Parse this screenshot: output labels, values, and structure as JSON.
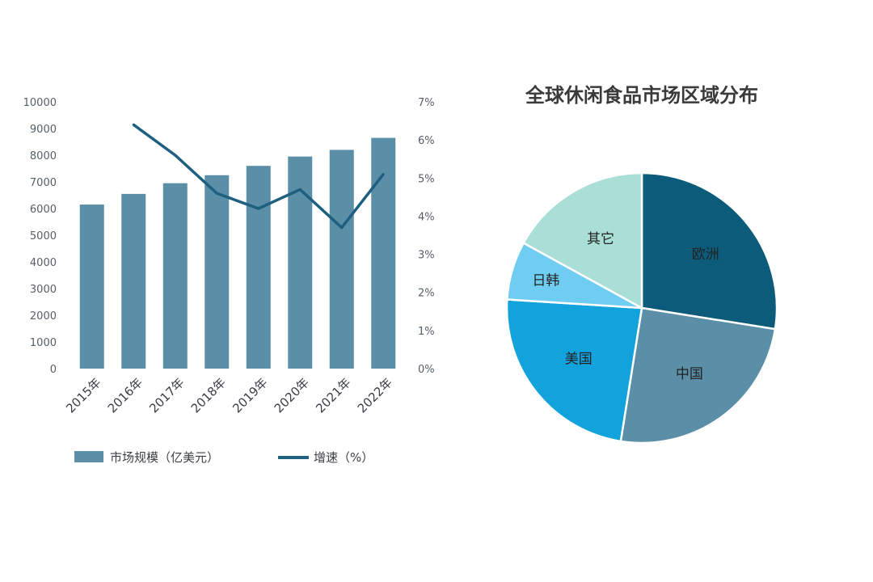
{
  "chart_data": [
    {
      "type": "bar",
      "title": "",
      "categories": [
        "2015年",
        "2016年",
        "2017年",
        "2018年",
        "2019年",
        "2020年",
        "2021年",
        "2022年"
      ],
      "ylim": [
        0,
        10000
      ],
      "y_ticks": [
        "0",
        "1000",
        "2000",
        "3000",
        "4000",
        "5000",
        "6000",
        "7000",
        "8000",
        "9000",
        "10000"
      ],
      "y2lim": [
        0,
        7
      ],
      "y2_ticks": [
        "0%",
        "1%",
        "2%",
        "3%",
        "4%",
        "5%",
        "6%",
        "7%"
      ],
      "grid": false,
      "legend_position": "bottom",
      "series": [
        {
          "name": "市场规模（亿美元）",
          "type": "bar",
          "axis": "left",
          "color": "#5b8fa8",
          "values": [
            6150,
            6550,
            6950,
            7250,
            7600,
            7950,
            8200,
            8650
          ]
        },
        {
          "name": "增速（%）",
          "type": "line",
          "axis": "right",
          "color": "#1f5f7f",
          "values": [
            null,
            6.4,
            5.6,
            4.6,
            4.2,
            4.7,
            3.7,
            5.1
          ]
        }
      ]
    },
    {
      "type": "pie",
      "title": "全球休闲食品市场区域分布",
      "slices": [
        {
          "label": "欧洲",
          "value": 27.5,
          "color": "#0d5b7a"
        },
        {
          "label": "中国",
          "value": 25.0,
          "color": "#5b8fa8"
        },
        {
          "label": "美国",
          "value": 23.5,
          "color": "#12a3dc"
        },
        {
          "label": "日韩",
          "value": 7.0,
          "color": "#6fcdf2"
        },
        {
          "label": "其它",
          "value": 17.0,
          "color": "#a9dfd6"
        }
      ]
    }
  ]
}
